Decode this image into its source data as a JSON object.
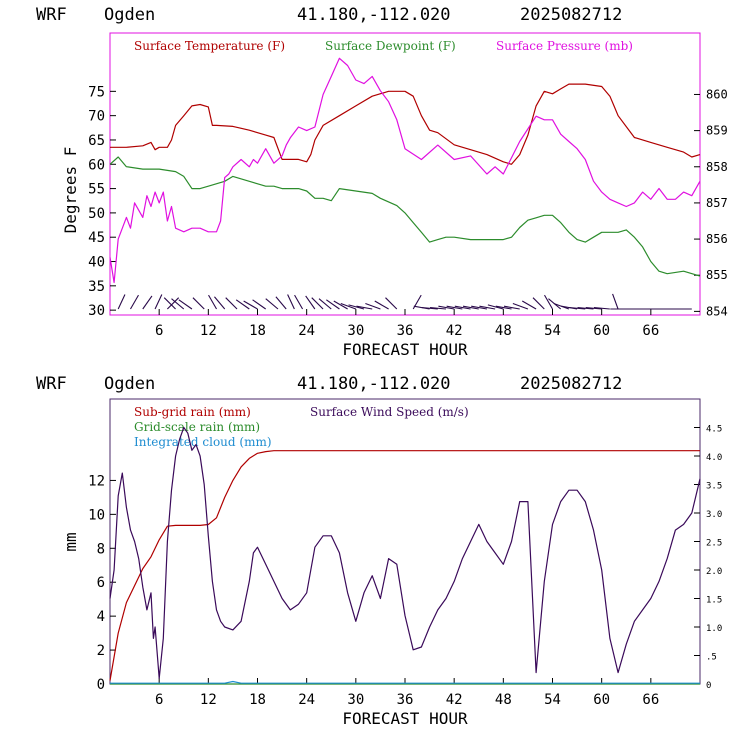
{
  "chart_data": [
    {
      "type": "line",
      "header": {
        "model": "WRF",
        "station": "Ogden",
        "coords": "41.180,-112.020",
        "init": "2025082712"
      },
      "xlabel": "FORECAST HOUR",
      "ylabel": "Degrees F",
      "xlim": [
        0,
        72
      ],
      "x_ticks": [
        "6",
        "12",
        "18",
        "24",
        "30",
        "36",
        "42",
        "48",
        "54",
        "60",
        "66"
      ],
      "ylim": [
        29,
        87
      ],
      "y_ticks": [
        "30",
        "35",
        "40",
        "45",
        "50",
        "55",
        "60",
        "65",
        "70",
        "75"
      ],
      "y2lim": [
        853.9,
        861.7
      ],
      "y2_ticks": [
        "854",
        "855",
        "856",
        "857",
        "858",
        "859",
        "860"
      ],
      "series": [
        {
          "name": "Surface Temperature (F)",
          "color": "#b00000",
          "x": [
            0,
            2,
            4,
            5,
            5.5,
            6,
            7,
            7.5,
            8,
            9,
            10,
            11,
            12,
            12.5,
            13,
            15,
            17,
            19,
            20,
            21,
            23,
            24,
            24.5,
            25,
            26,
            28,
            30,
            32,
            34,
            36,
            37,
            38,
            39,
            40,
            42,
            44,
            46,
            48,
            49,
            50,
            51,
            52,
            53,
            54,
            55,
            56,
            58,
            60,
            61,
            61.5,
            62,
            64,
            66,
            68,
            70,
            71,
            72
          ],
          "y": [
            63.5,
            63.5,
            63.8,
            64.5,
            63,
            63.5,
            63.5,
            65,
            68,
            70,
            72,
            72.3,
            71.8,
            68,
            68,
            67.8,
            67,
            66,
            65.5,
            61,
            61,
            60.5,
            62,
            65,
            68,
            70,
            72,
            74,
            75,
            75,
            74,
            70,
            67,
            66.5,
            64,
            63,
            62,
            60.5,
            60,
            62,
            66,
            72,
            75,
            74.5,
            75.5,
            76.5,
            76.5,
            76,
            74,
            72,
            70,
            65.5,
            64.5,
            63.5,
            62.5,
            61.5,
            62
          ]
        },
        {
          "name": "Surface Dewpoint (F)",
          "color": "#2c8c2c",
          "x": [
            0,
            1,
            2,
            4,
            6,
            8,
            9,
            10,
            11,
            12,
            14,
            15,
            17,
            19,
            20,
            21,
            23,
            24,
            25,
            26,
            27,
            28,
            30,
            32,
            33,
            35,
            36,
            37,
            38,
            39,
            40,
            41,
            42,
            44,
            46,
            48,
            49,
            50,
            51,
            52,
            53,
            54,
            55,
            56,
            57,
            58,
            59,
            60,
            61,
            62,
            63,
            64,
            65,
            66,
            67,
            68,
            70,
            72
          ],
          "y": [
            60,
            61.5,
            59.5,
            59,
            59,
            58.5,
            57.5,
            55,
            55,
            55.5,
            56.5,
            57.5,
            56.5,
            55.5,
            55.5,
            55,
            55,
            54.5,
            53,
            53,
            52.5,
            55,
            54.5,
            54,
            53,
            51.5,
            50,
            48,
            46,
            44,
            44.5,
            45,
            45,
            44.5,
            44.5,
            44.5,
            45,
            47,
            48.5,
            49,
            49.5,
            49.5,
            48,
            46,
            44.5,
            44,
            45,
            46,
            46,
            46,
            46.5,
            45,
            43,
            40,
            38,
            37.5,
            38,
            37
          ]
        },
        {
          "name": "Surface Pressure (mb)",
          "color": "#e010e0",
          "axis": "right",
          "x": [
            0,
            0.5,
            1,
            2,
            2.5,
            3,
            4,
            4.5,
            5,
            5.5,
            6,
            6.5,
            7,
            7.5,
            8,
            9,
            10,
            11,
            12,
            13,
            13.5,
            14,
            14.5,
            15,
            16,
            17,
            17.5,
            18,
            19,
            20,
            21,
            21.5,
            22,
            23,
            24,
            25,
            26,
            27,
            28,
            29,
            30,
            31,
            32,
            33,
            34,
            35,
            36,
            38,
            40,
            42,
            44,
            46,
            47,
            48,
            50,
            52,
            53,
            54,
            55,
            56,
            57,
            58,
            59,
            60,
            61,
            62,
            63,
            64,
            65,
            66,
            67,
            68,
            69,
            70,
            71,
            72
          ],
          "y": [
            855.5,
            854.8,
            856.0,
            856.6,
            856.3,
            857.0,
            856.6,
            857.2,
            856.9,
            857.3,
            857.0,
            857.3,
            856.5,
            856.9,
            856.3,
            856.2,
            856.3,
            856.3,
            856.2,
            856.2,
            856.5,
            857.7,
            857.8,
            858.0,
            858.2,
            858.0,
            858.2,
            858.1,
            858.5,
            858.1,
            858.3,
            858.6,
            858.8,
            859.1,
            859.0,
            859.1,
            860.0,
            860.5,
            861.0,
            860.8,
            860.4,
            860.3,
            860.5,
            860.1,
            859.8,
            859.3,
            858.5,
            858.2,
            858.6,
            858.2,
            858.3,
            857.8,
            858.0,
            857.8,
            858.7,
            859.4,
            859.3,
            859.3,
            858.9,
            858.7,
            858.5,
            858.2,
            857.6,
            857.3,
            857.1,
            857.0,
            856.9,
            857.0,
            857.3,
            857.1,
            857.4,
            857.1,
            857.1,
            857.3,
            857.2,
            857.6
          ]
        }
      ],
      "wind_barbs": [
        {
          "x": 1,
          "a": 25
        },
        {
          "x": 2.5,
          "a": 30
        },
        {
          "x": 4,
          "a": 35
        },
        {
          "x": 5.5,
          "a": 25
        },
        {
          "x": 7,
          "a": 45
        },
        {
          "x": 8,
          "a": -45
        },
        {
          "x": 9,
          "a": -50
        },
        {
          "x": 10,
          "a": -55
        },
        {
          "x": 11.5,
          "a": -45
        },
        {
          "x": 13,
          "a": -30
        },
        {
          "x": 14,
          "a": -40
        },
        {
          "x": 15.5,
          "a": -45
        },
        {
          "x": 17,
          "a": -55
        },
        {
          "x": 18,
          "a": -60
        },
        {
          "x": 19,
          "a": -55
        },
        {
          "x": 20.5,
          "a": -50
        },
        {
          "x": 21.5,
          "a": -40
        },
        {
          "x": 22.5,
          "a": -25
        },
        {
          "x": 23.5,
          "a": -30
        },
        {
          "x": 25,
          "a": -35
        },
        {
          "x": 26,
          "a": -45
        },
        {
          "x": 27,
          "a": -50
        },
        {
          "x": 28,
          "a": -55
        },
        {
          "x": 29,
          "a": -60
        },
        {
          "x": 30,
          "a": -70
        },
        {
          "x": 31,
          "a": -75
        },
        {
          "x": 32,
          "a": -80
        },
        {
          "x": 33,
          "a": -70
        },
        {
          "x": 34,
          "a": -60
        },
        {
          "x": 35,
          "a": -45
        },
        {
          "x": 37,
          "a": 30
        },
        {
          "x": 39,
          "a": -80
        },
        {
          "x": 40,
          "a": -85
        },
        {
          "x": 41,
          "a": -85
        },
        {
          "x": 42,
          "a": -80
        },
        {
          "x": 43,
          "a": -80
        },
        {
          "x": 44,
          "a": -80
        },
        {
          "x": 45,
          "a": -80
        },
        {
          "x": 46,
          "a": -80
        },
        {
          "x": 47,
          "a": -80
        },
        {
          "x": 48,
          "a": -75
        },
        {
          "x": 49,
          "a": -80
        },
        {
          "x": 50,
          "a": -80
        },
        {
          "x": 51,
          "a": -70
        },
        {
          "x": 52,
          "a": -60
        },
        {
          "x": 53,
          "a": -45
        },
        {
          "x": 54,
          "a": -30
        },
        {
          "x": 55,
          "a": -50
        },
        {
          "x": 56,
          "a": -70
        },
        {
          "x": 57,
          "a": -80
        },
        {
          "x": 58,
          "a": -85
        },
        {
          "x": 59,
          "a": -85
        },
        {
          "x": 60,
          "a": -85
        },
        {
          "x": 61,
          "a": -85
        },
        {
          "x": 62,
          "a": -20
        },
        {
          "x": 63,
          "a": -90
        },
        {
          "x": 64,
          "a": -90
        },
        {
          "x": 65,
          "a": -90
        },
        {
          "x": 66,
          "a": -90
        },
        {
          "x": 67,
          "a": -90
        },
        {
          "x": 68,
          "a": -90
        },
        {
          "x": 69,
          "a": -90
        },
        {
          "x": 70,
          "a": -90
        },
        {
          "x": 71,
          "a": -90
        }
      ]
    },
    {
      "type": "line",
      "header": {
        "model": "WRF",
        "station": "Ogden",
        "coords": "41.180,-112.020",
        "init": "2025082712"
      },
      "xlabel": "FORECAST HOUR",
      "ylabel": "mm",
      "xlim": [
        0,
        72
      ],
      "x_ticks": [
        "6",
        "12",
        "18",
        "24",
        "30",
        "36",
        "42",
        "48",
        "54",
        "60",
        "66"
      ],
      "ylim": [
        0,
        16.8
      ],
      "y_ticks": [
        "0",
        "2",
        "4",
        "6",
        "8",
        "10",
        "12"
      ],
      "y2lim": [
        0,
        5.0
      ],
      "y2_ticks": [
        "0",
        ".5",
        "1.0",
        "1.5",
        "2.0",
        "2.5",
        "3.0",
        "3.5",
        "4.0",
        "4.5"
      ],
      "series": [
        {
          "name": "Sub-grid rain (mm)",
          "color": "#b00000",
          "x": [
            0,
            1,
            2,
            3,
            4,
            5,
            6,
            7,
            8,
            9,
            10,
            11,
            12,
            13,
            14,
            15,
            16,
            17,
            18,
            19,
            20,
            72
          ],
          "y": [
            0.2,
            3.0,
            4.8,
            5.8,
            6.8,
            7.5,
            8.5,
            9.3,
            9.35,
            9.35,
            9.35,
            9.35,
            9.4,
            9.8,
            11.0,
            12.0,
            12.8,
            13.3,
            13.6,
            13.7,
            13.75,
            13.75
          ]
        },
        {
          "name": "Grid-scale rain (mm)",
          "color": "#2c8c2c",
          "x": [
            0,
            72
          ],
          "y": [
            0,
            0
          ]
        },
        {
          "name": "Integrated cloud (mm)",
          "color": "#1e8cd0",
          "x": [
            0,
            14,
            15,
            16,
            17,
            72
          ],
          "y": [
            0.05,
            0.05,
            0.15,
            0.05,
            0.05,
            0.05
          ]
        },
        {
          "name": "Surface Wind Speed (m/s)",
          "color": "#3a0a5a",
          "axis": "right",
          "x": [
            0,
            0.5,
            1,
            1.5,
            2,
            2.5,
            3,
            3.5,
            4,
            4.5,
            5,
            5.3,
            5.5,
            6,
            6.5,
            7,
            7.5,
            8,
            8.5,
            9,
            9.5,
            10,
            10.5,
            11,
            11.5,
            12,
            12.5,
            13,
            13.5,
            14,
            15,
            16,
            17,
            17.5,
            18,
            19,
            20,
            21,
            22,
            23,
            24,
            25,
            26,
            27,
            28,
            29,
            30,
            31,
            32,
            33,
            34,
            35,
            36,
            37,
            38,
            39,
            40,
            41,
            42,
            43,
            44,
            45,
            46,
            47,
            48,
            49,
            50,
            51,
            52,
            53,
            54,
            55,
            56,
            57,
            58,
            59,
            60,
            61,
            62,
            63,
            64,
            65,
            66,
            67,
            68,
            69,
            70,
            71,
            72
          ],
          "y": [
            1.5,
            2.0,
            3.3,
            3.7,
            3.1,
            2.7,
            2.5,
            2.2,
            1.7,
            1.3,
            1.6,
            0.8,
            1.0,
            0.1,
            0.8,
            2.5,
            3.4,
            4.0,
            4.3,
            4.5,
            4.4,
            4.1,
            4.2,
            4.0,
            3.5,
            2.6,
            1.8,
            1.3,
            1.1,
            1.0,
            0.95,
            1.1,
            1.8,
            2.3,
            2.4,
            2.1,
            1.8,
            1.5,
            1.3,
            1.4,
            1.6,
            2.4,
            2.6,
            2.6,
            2.3,
            1.6,
            1.1,
            1.6,
            1.9,
            1.5,
            2.2,
            2.1,
            1.2,
            0.6,
            0.65,
            1.0,
            1.3,
            1.5,
            1.8,
            2.2,
            2.5,
            2.8,
            2.5,
            2.3,
            2.1,
            2.5,
            3.2,
            3.2,
            0.2,
            1.8,
            2.8,
            3.2,
            3.4,
            3.4,
            3.2,
            2.7,
            2.0,
            0.8,
            0.2,
            0.7,
            1.1,
            1.3,
            1.5,
            1.8,
            2.2,
            2.7,
            2.8,
            3.0,
            3.6
          ]
        }
      ]
    }
  ]
}
